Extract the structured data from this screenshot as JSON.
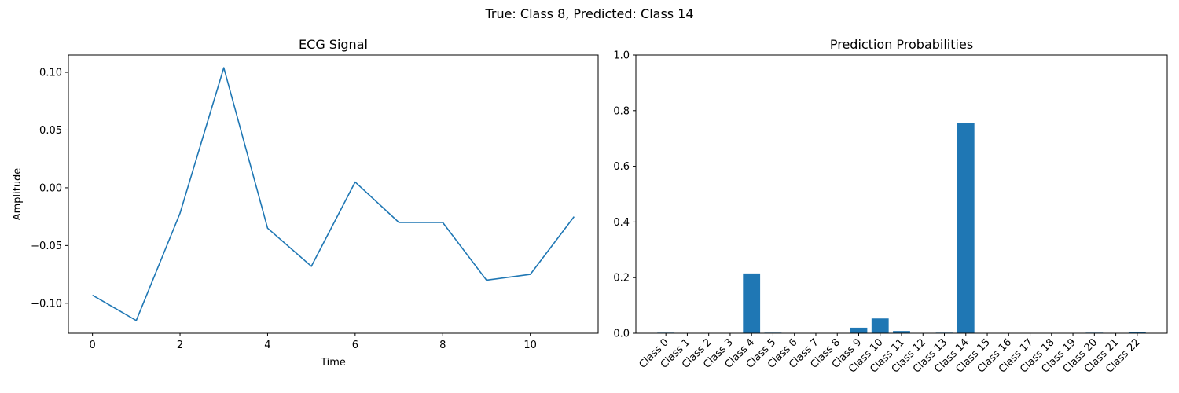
{
  "figure": {
    "suptitle": "True: Class 8, Predicted: Class 14"
  },
  "chart_data": [
    {
      "type": "line",
      "title": "ECG Signal",
      "xlabel": "Time",
      "ylabel": "Amplitude",
      "x": [
        0,
        1,
        2,
        3,
        4,
        5,
        6,
        7,
        8,
        9,
        10,
        11
      ],
      "series": [
        {
          "values": [
            -0.093,
            -0.115,
            -0.022,
            0.104,
            -0.035,
            -0.068,
            0.005,
            -0.03,
            -0.03,
            -0.08,
            -0.075,
            -0.025
          ],
          "color": "#1f77b4"
        }
      ],
      "xlim": [
        -0.55,
        11.55
      ],
      "ylim": [
        -0.126,
        0.115
      ],
      "xticks": [
        0,
        2,
        4,
        6,
        8,
        10
      ],
      "xtick_labels": [
        "0",
        "2",
        "4",
        "6",
        "8",
        "10"
      ],
      "yticks": [
        -0.1,
        -0.05,
        0.0,
        0.05,
        0.1
      ],
      "ytick_labels": [
        "−0.10",
        "−0.05",
        "0.00",
        "0.05",
        "0.10"
      ],
      "grid": false
    },
    {
      "type": "bar",
      "title": "Prediction Probabilities",
      "categories": [
        "Class 0",
        "Class 1",
        "Class 2",
        "Class 3",
        "Class 4",
        "Class 5",
        "Class 6",
        "Class 7",
        "Class 8",
        "Class 9",
        "Class 10",
        "Class 11",
        "Class 12",
        "Class 13",
        "Class 14",
        "Class 15",
        "Class 16",
        "Class 17",
        "Class 18",
        "Class 19",
        "Class 20",
        "Class 21",
        "Class 22"
      ],
      "values": [
        0.002,
        0.0,
        0.0,
        0.0,
        0.215,
        0.002,
        0.0,
        0.0,
        0.0,
        0.02,
        0.053,
        0.008,
        0.0,
        0.002,
        0.755,
        0.0,
        0.0,
        0.0,
        0.0,
        0.0,
        0.002,
        0.0,
        0.005
      ],
      "color": "#1f77b4",
      "ylim": [
        0,
        1.0
      ],
      "yticks": [
        0.0,
        0.2,
        0.4,
        0.6,
        0.8,
        1.0
      ],
      "ytick_labels": [
        "0.0",
        "0.2",
        "0.4",
        "0.6",
        "0.8",
        "1.0"
      ],
      "xtick_rotation": 45,
      "grid": false
    }
  ]
}
